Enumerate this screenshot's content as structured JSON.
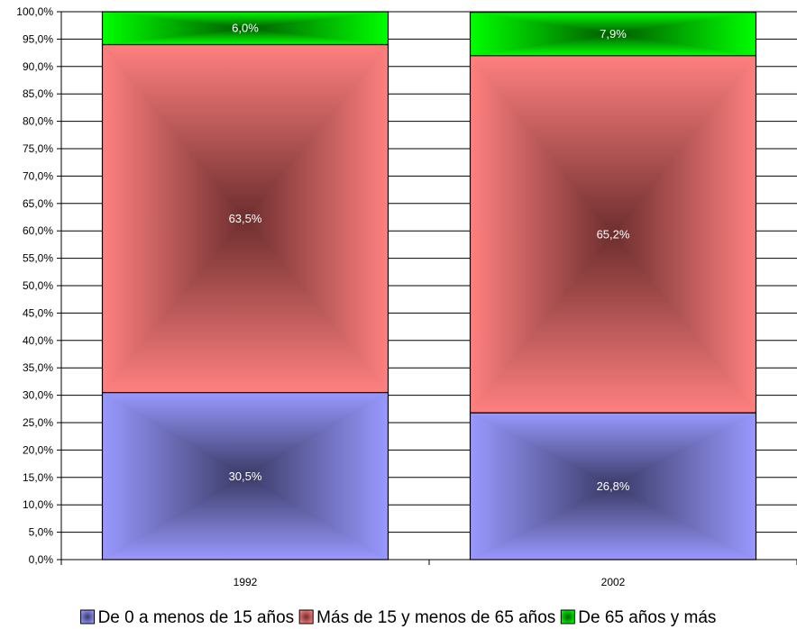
{
  "chart_data": {
    "type": "bar",
    "stacked": true,
    "percent_stacked": true,
    "categories": [
      "1992",
      "2002"
    ],
    "series": [
      {
        "name": "De 0 a menos de 15 años",
        "values": [
          30.5,
          26.8
        ],
        "labels": [
          "30,5%",
          "26,8%"
        ],
        "color": "#9999ff",
        "dark_color": "#3a3a66"
      },
      {
        "name": "Más de 15 y menos de 65 años",
        "values": [
          63.5,
          65.2
        ],
        "labels": [
          "63,5%",
          "65,2%"
        ],
        "color": "#ff8080",
        "dark_color": "#6e2e2e"
      },
      {
        "name": "De 65 años y más",
        "values": [
          6.0,
          7.9
        ],
        "labels": [
          "6,0%",
          "7,9%"
        ],
        "color": "#00ff00",
        "dark_color": "#005a00"
      }
    ],
    "ylim": [
      0,
      100
    ],
    "y_ticks": [
      0,
      5,
      10,
      15,
      20,
      25,
      30,
      35,
      40,
      45,
      50,
      55,
      60,
      65,
      70,
      75,
      80,
      85,
      90,
      95,
      100
    ],
    "y_tick_labels": [
      "0,0%",
      "5,0%",
      "10,0%",
      "15,0%",
      "20,0%",
      "25,0%",
      "30,0%",
      "35,0%",
      "40,0%",
      "45,0%",
      "50,0%",
      "55,0%",
      "60,0%",
      "65,0%",
      "70,0%",
      "75,0%",
      "80,0%",
      "85,0%",
      "90,0%",
      "95,0%",
      "100,0%"
    ],
    "grid": true,
    "legend_position": "bottom",
    "title": "",
    "xlabel": "",
    "ylabel": ""
  }
}
